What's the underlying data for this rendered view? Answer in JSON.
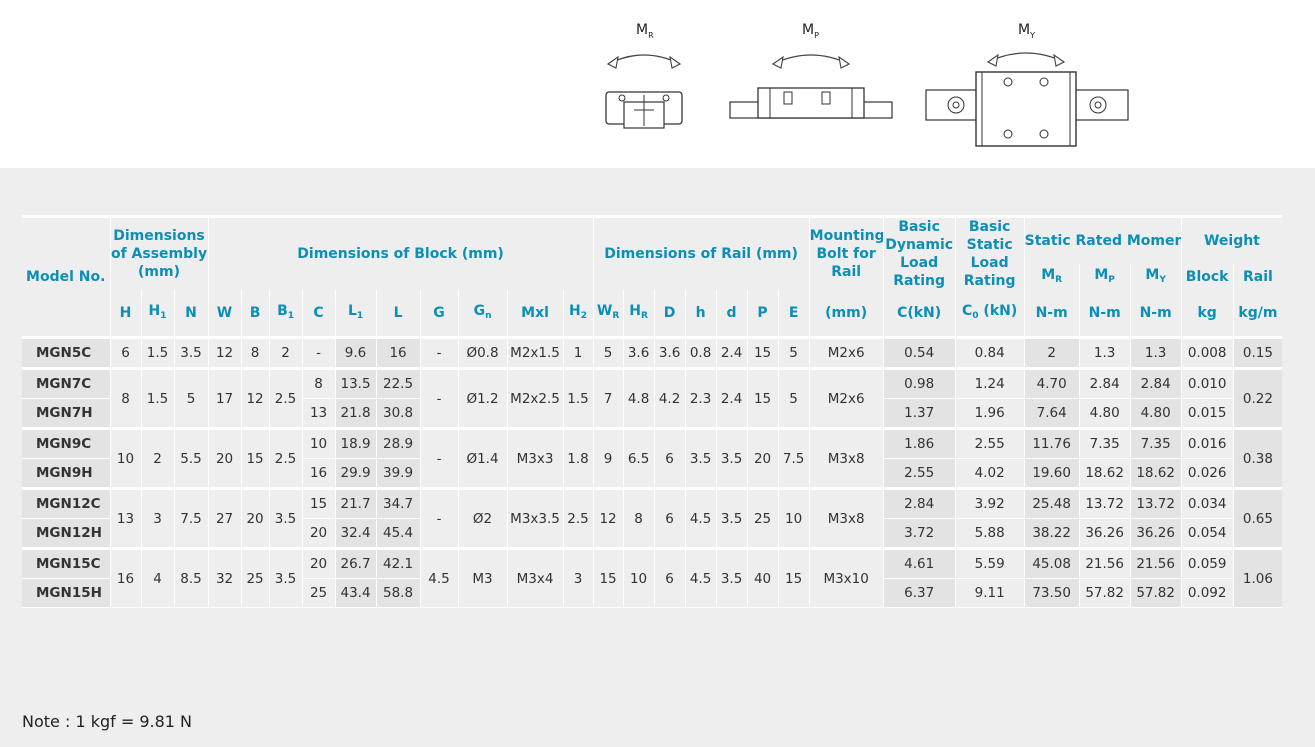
{
  "diagram": {
    "mr_label": "M",
    "mr_sub": "R",
    "mp_label": "M",
    "mp_sub": "P",
    "my_label": "M",
    "my_sub": "Y"
  },
  "table": {
    "header": {
      "model_no": "Model No.",
      "assembly": "Dimensions of Assembly (mm)",
      "block": "Dimensions of Block (mm)",
      "rail": "Dimensions of Rail (mm)",
      "bolt": "Mounting Bolt for Rail",
      "dynamic": "Basic Dynamic Load Rating",
      "static": "Basic Static Load Rating",
      "moment": "Static Rated Moment",
      "weight": "Weight",
      "weight_block": "Block",
      "weight_rail": "Rail"
    },
    "sub_columns": [
      {
        "t": "H"
      },
      {
        "t": "H",
        "s": "1"
      },
      {
        "t": "N"
      },
      {
        "t": "W"
      },
      {
        "t": "B"
      },
      {
        "t": "B",
        "s": "1"
      },
      {
        "t": "C"
      },
      {
        "t": "L",
        "s": "1"
      },
      {
        "t": "L"
      },
      {
        "t": "G"
      },
      {
        "t": "G",
        "s": "n"
      },
      {
        "t": "Mxl"
      },
      {
        "t": "H",
        "s": "2"
      },
      {
        "t": "W",
        "s": "R"
      },
      {
        "t": "H",
        "s": "R"
      },
      {
        "t": "D"
      },
      {
        "t": "h"
      },
      {
        "t": "d"
      },
      {
        "t": "P"
      },
      {
        "t": "E"
      },
      {
        "t": "(mm)"
      },
      {
        "t": "C(kN)"
      },
      {
        "t": "C",
        "s": "0",
        "t2": " (kN)"
      }
    ],
    "moment_cols": [
      {
        "t": "M",
        "s": "R",
        "u": "N-m"
      },
      {
        "t": "M",
        "s": "P",
        "u": "N-m"
      },
      {
        "t": "M",
        "s": "Y",
        "u": "N-m"
      }
    ],
    "weight_units": {
      "block": "kg",
      "rail": "kg/m"
    },
    "groups": [
      {
        "shared": {
          "H": "6",
          "H1": "1.5",
          "N": "3.5",
          "W": "12",
          "B": "8",
          "B1": "2",
          "G": "-",
          "Gn": "Ø0.8",
          "Mxl": "M2x1.5",
          "H2": "1",
          "WR": "5",
          "HR": "3.6",
          "D": "3.6",
          "h": "0.8",
          "d": "2.4",
          "P": "15",
          "E": "5",
          "bolt": "M2x6",
          "rail_kgm": "0.15"
        },
        "rows": [
          {
            "model": "MGN5C",
            "C": "-",
            "L1": "9.6",
            "L": "16",
            "dyn": "0.54",
            "stat": "0.84",
            "MR": "2",
            "MP": "1.3",
            "MY": "1.3",
            "block_kg": "0.008"
          }
        ]
      },
      {
        "shared": {
          "H": "8",
          "H1": "1.5",
          "N": "5",
          "W": "17",
          "B": "12",
          "B1": "2.5",
          "G": "-",
          "Gn": "Ø1.2",
          "Mxl": "M2x2.5",
          "H2": "1.5",
          "WR": "7",
          "HR": "4.8",
          "D": "4.2",
          "h": "2.3",
          "d": "2.4",
          "P": "15",
          "E": "5",
          "bolt": "M2x6",
          "rail_kgm": "0.22"
        },
        "rows": [
          {
            "model": "MGN7C",
            "C": "8",
            "L1": "13.5",
            "L": "22.5",
            "dyn": "0.98",
            "stat": "1.24",
            "MR": "4.70",
            "MP": "2.84",
            "MY": "2.84",
            "block_kg": "0.010"
          },
          {
            "model": "MGN7H",
            "C": "13",
            "L1": "21.8",
            "L": "30.8",
            "dyn": "1.37",
            "stat": "1.96",
            "MR": "7.64",
            "MP": "4.80",
            "MY": "4.80",
            "block_kg": "0.015"
          }
        ]
      },
      {
        "shared": {
          "H": "10",
          "H1": "2",
          "N": "5.5",
          "W": "20",
          "B": "15",
          "B1": "2.5",
          "G": "-",
          "Gn": "Ø1.4",
          "Mxl": "M3x3",
          "H2": "1.8",
          "WR": "9",
          "HR": "6.5",
          "D": "6",
          "h": "3.5",
          "d": "3.5",
          "P": "20",
          "E": "7.5",
          "bolt": "M3x8",
          "rail_kgm": "0.38"
        },
        "rows": [
          {
            "model": "MGN9C",
            "C": "10",
            "L1": "18.9",
            "L": "28.9",
            "dyn": "1.86",
            "stat": "2.55",
            "MR": "11.76",
            "MP": "7.35",
            "MY": "7.35",
            "block_kg": "0.016"
          },
          {
            "model": "MGN9H",
            "C": "16",
            "L1": "29.9",
            "L": "39.9",
            "dyn": "2.55",
            "stat": "4.02",
            "MR": "19.60",
            "MP": "18.62",
            "MY": "18.62",
            "block_kg": "0.026"
          }
        ]
      },
      {
        "shared": {
          "H": "13",
          "H1": "3",
          "N": "7.5",
          "W": "27",
          "B": "20",
          "B1": "3.5",
          "G": "-",
          "Gn": "Ø2",
          "Mxl": "M3x3.5",
          "H2": "2.5",
          "WR": "12",
          "HR": "8",
          "D": "6",
          "h": "4.5",
          "d": "3.5",
          "P": "25",
          "E": "10",
          "bolt": "M3x8",
          "rail_kgm": "0.65"
        },
        "rows": [
          {
            "model": "MGN12C",
            "C": "15",
            "L1": "21.7",
            "L": "34.7",
            "dyn": "2.84",
            "stat": "3.92",
            "MR": "25.48",
            "MP": "13.72",
            "MY": "13.72",
            "block_kg": "0.034"
          },
          {
            "model": "MGN12H",
            "C": "20",
            "L1": "32.4",
            "L": "45.4",
            "dyn": "3.72",
            "stat": "5.88",
            "MR": "38.22",
            "MP": "36.26",
            "MY": "36.26",
            "block_kg": "0.054"
          }
        ]
      },
      {
        "shared": {
          "H": "16",
          "H1": "4",
          "N": "8.5",
          "W": "32",
          "B": "25",
          "B1": "3.5",
          "G": "4.5",
          "Gn": "M3",
          "Mxl": "M3x4",
          "H2": "3",
          "WR": "15",
          "HR": "10",
          "D": "6",
          "h": "4.5",
          "d": "3.5",
          "P": "40",
          "E": "15",
          "bolt": "M3x10",
          "rail_kgm": "1.06"
        },
        "rows": [
          {
            "model": "MGN15C",
            "C": "20",
            "L1": "26.7",
            "L": "42.1",
            "dyn": "4.61",
            "stat": "5.59",
            "MR": "45.08",
            "MP": "21.56",
            "MY": "21.56",
            "block_kg": "0.059"
          },
          {
            "model": "MGN15H",
            "C": "25",
            "L1": "43.4",
            "L": "58.8",
            "dyn": "6.37",
            "stat": "9.11",
            "MR": "73.50",
            "MP": "57.82",
            "MY": "57.82",
            "block_kg": "0.092"
          }
        ]
      }
    ]
  },
  "note": "Note : 1 kgf = 9.81 N"
}
